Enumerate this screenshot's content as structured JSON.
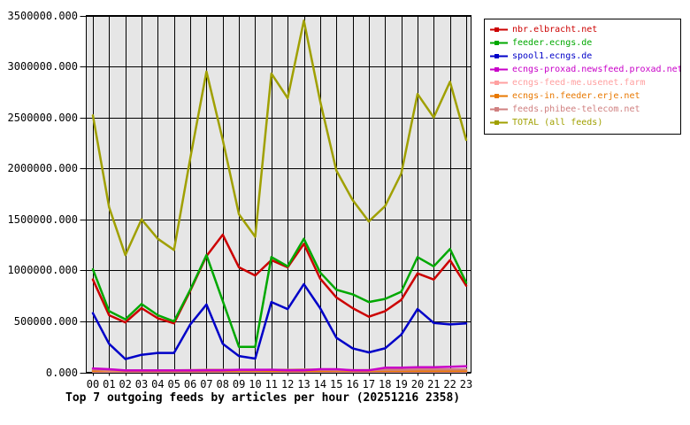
{
  "page": {
    "background": "#FFFFFF"
  },
  "chart_data": {
    "type": "line",
    "title": "Top 7 outgoing feeds by articles per hour (20251216 2358)",
    "xlabel": "",
    "ylabel": "",
    "ylim": [
      0,
      3500000
    ],
    "grid": true,
    "legend_position": "top-right",
    "plot_background": "#E6E6E6",
    "grid_color": "#000000",
    "text_color": "#000000",
    "y_tick_labels": [
      "0.000",
      "500000.000",
      "1000000.000",
      "1500000.000",
      "2000000.000",
      "2500000.000",
      "3000000.000",
      "3500000.000"
    ],
    "y_tick_values": [
      0,
      500000,
      1000000,
      1500000,
      2000000,
      2500000,
      3000000,
      3500000
    ],
    "categories": [
      "00",
      "01",
      "02",
      "03",
      "04",
      "05",
      "06",
      "07",
      "08",
      "09",
      "10",
      "11",
      "12",
      "13",
      "14",
      "15",
      "16",
      "17",
      "18",
      "19",
      "20",
      "21",
      "22",
      "23"
    ],
    "series": [
      {
        "name": "nbr.elbracht.net",
        "color": "#CC0000",
        "values": [
          910000,
          560000,
          490000,
          630000,
          530000,
          480000,
          800000,
          1140000,
          1350000,
          1030000,
          950000,
          1100000,
          1030000,
          1260000,
          920000,
          735000,
          630000,
          545000,
          600000,
          710000,
          970000,
          910000,
          1100000,
          850000
        ]
      },
      {
        "name": "feeder.ecngs.de",
        "color": "#00A800",
        "values": [
          1010000,
          600000,
          520000,
          670000,
          560000,
          500000,
          810000,
          1150000,
          700000,
          250000,
          250000,
          1130000,
          1040000,
          1310000,
          980000,
          810000,
          765000,
          690000,
          720000,
          790000,
          1130000,
          1040000,
          1210000,
          880000
        ]
      },
      {
        "name": "spool1.ecngs.de",
        "color": "#0000C8",
        "values": [
          580000,
          280000,
          130000,
          172000,
          190000,
          190000,
          470000,
          665000,
          280000,
          160000,
          135000,
          690000,
          620000,
          865000,
          630000,
          340000,
          235000,
          195000,
          235000,
          370000,
          620000,
          485000,
          470000,
          480000
        ]
      },
      {
        "name": "ecngs-proxad.newsfeed.proxad.net",
        "color": "#C800C8",
        "values": [
          38000,
          30000,
          18000,
          18000,
          18000,
          18000,
          18000,
          20000,
          20000,
          25000,
          25000,
          25000,
          20000,
          20000,
          30000,
          30000,
          20000,
          20000,
          45000,
          45000,
          50000,
          50000,
          55000,
          60000
        ]
      },
      {
        "name": "ecngs-feed-me.usenet.farm",
        "color": "#FFA0A0",
        "values": [
          8000,
          8000,
          8000,
          8000,
          8000,
          8000,
          8000,
          8000,
          8000,
          8000,
          8000,
          8000,
          8000,
          8000,
          8000,
          8000,
          8000,
          8000,
          8000,
          8000,
          8000,
          8000,
          8000,
          8000
        ]
      },
      {
        "name": "ecngs-in.feeder.erje.net",
        "color": "#E87800",
        "values": [
          15000,
          20000,
          15000,
          15000,
          15000,
          15000,
          15000,
          15000,
          15000,
          15000,
          15000,
          15000,
          15000,
          15000,
          15000,
          15000,
          15000,
          15000,
          15000,
          15000,
          15000,
          15000,
          15000,
          15000
        ]
      },
      {
        "name": "feeds.phibee-telecom.net",
        "color": "#D08080",
        "values": [
          28000,
          22000,
          20000,
          20000,
          20000,
          20000,
          22000,
          25000,
          25000,
          22000,
          22000,
          25000,
          25000,
          28000,
          25000,
          22000,
          22000,
          22000,
          25000,
          25000,
          28000,
          28000,
          28000,
          28000
        ]
      },
      {
        "name": "TOTAL (all feeds)",
        "color": "#A0A000",
        "values": [
          2520000,
          1620000,
          1150000,
          1500000,
          1310000,
          1200000,
          2100000,
          2950000,
          2280000,
          1550000,
          1330000,
          2930000,
          2690000,
          3450000,
          2660000,
          1980000,
          1690000,
          1480000,
          1630000,
          1950000,
          2730000,
          2500000,
          2850000,
          2280000
        ]
      }
    ],
    "draw_order": [
      "ecngs-feed-me.usenet.farm",
      "ecngs-in.feeder.erje.net",
      "feeds.phibee-telecom.net",
      "ecngs-proxad.newsfeed.proxad.net",
      "nbr.elbracht.net",
      "spool1.ecngs.de",
      "feeder.ecngs.de",
      "TOTAL (all feeds)"
    ]
  }
}
